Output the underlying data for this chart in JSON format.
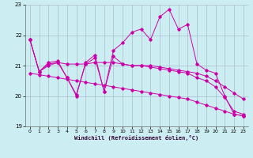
{
  "xlabel": "Windchill (Refroidissement éolien,°C)",
  "bg_color": "#cceef2",
  "grid_color": "#aabbcc",
  "line_color": "#cc00aa",
  "xlim": [
    -0.5,
    23.5
  ],
  "ylim": [
    19,
    23
  ],
  "yticks": [
    19,
    20,
    21,
    22,
    23
  ],
  "xticks": [
    0,
    1,
    2,
    3,
    4,
    5,
    6,
    7,
    8,
    9,
    10,
    11,
    12,
    13,
    14,
    15,
    16,
    17,
    18,
    19,
    20,
    21,
    22,
    23
  ],
  "series": [
    {
      "x": [
        0,
        1,
        2,
        3,
        4,
        5,
        6,
        7,
        8,
        9,
        10,
        11,
        12,
        13,
        14,
        15,
        16,
        17,
        18,
        19,
        20,
        21,
        22,
        23
      ],
      "y": [
        21.85,
        20.8,
        21.1,
        21.15,
        20.6,
        20.0,
        21.1,
        21.35,
        20.15,
        21.5,
        21.75,
        22.1,
        22.2,
        21.85,
        22.6,
        22.85,
        22.2,
        22.35,
        21.05,
        20.85,
        20.75,
        20.0,
        19.4,
        19.35
      ]
    },
    {
      "x": [
        0,
        1,
        2,
        3,
        4,
        5,
        6,
        7,
        8,
        9,
        10,
        11,
        12,
        13,
        14,
        15,
        16,
        17,
        18,
        19,
        20,
        21,
        22,
        23
      ],
      "y": [
        21.85,
        20.8,
        21.05,
        21.1,
        21.05,
        21.05,
        21.05,
        21.1,
        21.1,
        21.1,
        21.05,
        21.0,
        21.0,
        21.0,
        20.95,
        20.9,
        20.85,
        20.8,
        20.75,
        20.65,
        20.5,
        20.3,
        20.1,
        19.9
      ]
    },
    {
      "x": [
        0,
        1,
        2,
        3,
        4,
        5,
        6,
        7,
        8,
        9,
        10,
        11,
        12,
        13,
        14,
        15,
        16,
        17,
        18,
        19,
        20,
        21,
        22,
        23
      ],
      "y": [
        21.85,
        20.8,
        21.0,
        21.1,
        20.6,
        20.05,
        21.05,
        21.25,
        20.15,
        21.3,
        21.05,
        21.0,
        21.0,
        20.95,
        20.9,
        20.85,
        20.8,
        20.75,
        20.6,
        20.5,
        20.3,
        19.95,
        19.5,
        19.4
      ]
    },
    {
      "x": [
        0,
        1,
        2,
        3,
        4,
        5,
        6,
        7,
        8,
        9,
        10,
        11,
        12,
        13,
        14,
        15,
        16,
        17,
        18,
        19,
        20,
        21,
        22,
        23
      ],
      "y": [
        20.75,
        20.7,
        20.65,
        20.6,
        20.55,
        20.5,
        20.45,
        20.4,
        20.35,
        20.3,
        20.25,
        20.2,
        20.15,
        20.1,
        20.05,
        20.0,
        19.95,
        19.9,
        19.8,
        19.7,
        19.6,
        19.5,
        19.4,
        19.35
      ]
    }
  ]
}
